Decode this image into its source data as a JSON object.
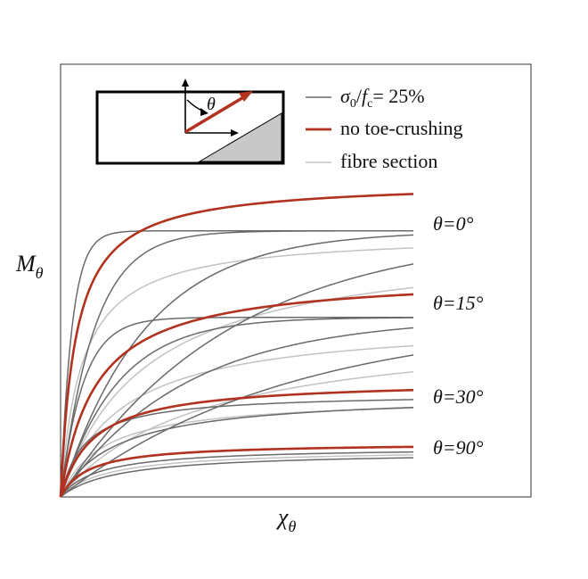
{
  "chart_data": {
    "type": "line",
    "xlabel": "χθ",
    "ylabel": "Mθ",
    "xlim": [
      0,
      1
    ],
    "ylim": [
      0,
      1
    ],
    "grid": false,
    "legend": {
      "placement": "top-right",
      "entries": [
        {
          "label_parts": [
            "σ",
            "0",
            "/",
            "f",
            "c",
            "= 25%"
          ],
          "style": "dark-gray"
        },
        {
          "label": "no toe-crushing",
          "style": "red"
        },
        {
          "label": "fibre section",
          "style": "light-gray"
        }
      ]
    },
    "inset": {
      "description_label": "θ"
    },
    "curve_labels": [
      "θ=0°",
      "θ=15°",
      "θ=30°",
      "θ=90°"
    ],
    "series": [
      {
        "group": "no toe-crushing",
        "angle_label": "θ=0°",
        "asymptote": 0.73,
        "k": 0.032,
        "end_x": 0.75
      },
      {
        "group": "no toe-crushing",
        "angle_label": "θ=15°",
        "asymptote": 0.515,
        "k": 0.075,
        "end_x": 0.75
      },
      {
        "group": "no toe-crushing",
        "angle_label": "θ=30°",
        "asymptote": 0.27,
        "k": 0.07,
        "end_x": 0.75
      },
      {
        "group": "no toe-crushing",
        "angle_label": "θ=90°",
        "asymptote": 0.125,
        "k": 0.06,
        "end_x": 0.75
      },
      {
        "group": "σ0/fc = 25%",
        "asymptote": 0.615,
        "k": 0.02,
        "end_x": 0.75,
        "plateau": true
      },
      {
        "group": "σ0/fc = 25%",
        "asymptote": 0.615,
        "k": 0.06,
        "end_x": 0.75,
        "plateau": true
      },
      {
        "group": "σ0/fc = 25%",
        "asymptote": 0.615,
        "k": 0.15,
        "end_x": 0.75,
        "plateau": true
      },
      {
        "group": "σ0/fc = 25%",
        "asymptote": 0.615,
        "k": 0.3,
        "end_x": 0.75,
        "plateau": true
      },
      {
        "group": "σ0/fc = 25%",
        "asymptote": 0.415,
        "k": 0.04,
        "end_x": 0.75,
        "plateau": true
      },
      {
        "group": "σ0/fc = 25%",
        "asymptote": 0.415,
        "k": 0.1,
        "end_x": 0.75,
        "plateau": true
      },
      {
        "group": "σ0/fc = 25%",
        "asymptote": 0.415,
        "k": 0.22,
        "end_x": 0.75,
        "plateau": true
      },
      {
        "group": "σ0/fc = 25%",
        "asymptote": 0.415,
        "k": 0.4,
        "end_x": 0.75,
        "plateau": true
      },
      {
        "group": "σ0/fc = 25%",
        "asymptote": 0.24,
        "k": 0.05,
        "end_x": 0.75
      },
      {
        "group": "σ0/fc = 25%",
        "asymptote": 0.24,
        "k": 0.12,
        "end_x": 0.75
      },
      {
        "group": "σ0/fc = 25%",
        "asymptote": 0.115,
        "k": 0.08,
        "end_x": 0.75
      },
      {
        "group": "σ0/fc = 25%",
        "asymptote": 0.105,
        "k": 0.12,
        "end_x": 0.75
      },
      {
        "group": "fibre section",
        "asymptote": 0.61,
        "k": 0.045,
        "end_x": 0.75
      },
      {
        "group": "fibre section",
        "asymptote": 0.6,
        "k": 0.18,
        "end_x": 0.75
      },
      {
        "group": "fibre section",
        "asymptote": 0.41,
        "k": 0.13,
        "end_x": 0.75
      },
      {
        "group": "fibre section",
        "asymptote": 0.405,
        "k": 0.3,
        "end_x": 0.75
      },
      {
        "group": "fibre section",
        "asymptote": 0.23,
        "k": 0.09,
        "end_x": 0.75
      },
      {
        "group": "fibre section",
        "asymptote": 0.11,
        "k": 0.1,
        "end_x": 0.75
      }
    ]
  },
  "colors": {
    "red": "#b0321f",
    "dark_gray": "#6a6a6a",
    "light_gray": "#c2c2c2",
    "inset_fill": "#c8c8c8",
    "frame": "#333333"
  }
}
